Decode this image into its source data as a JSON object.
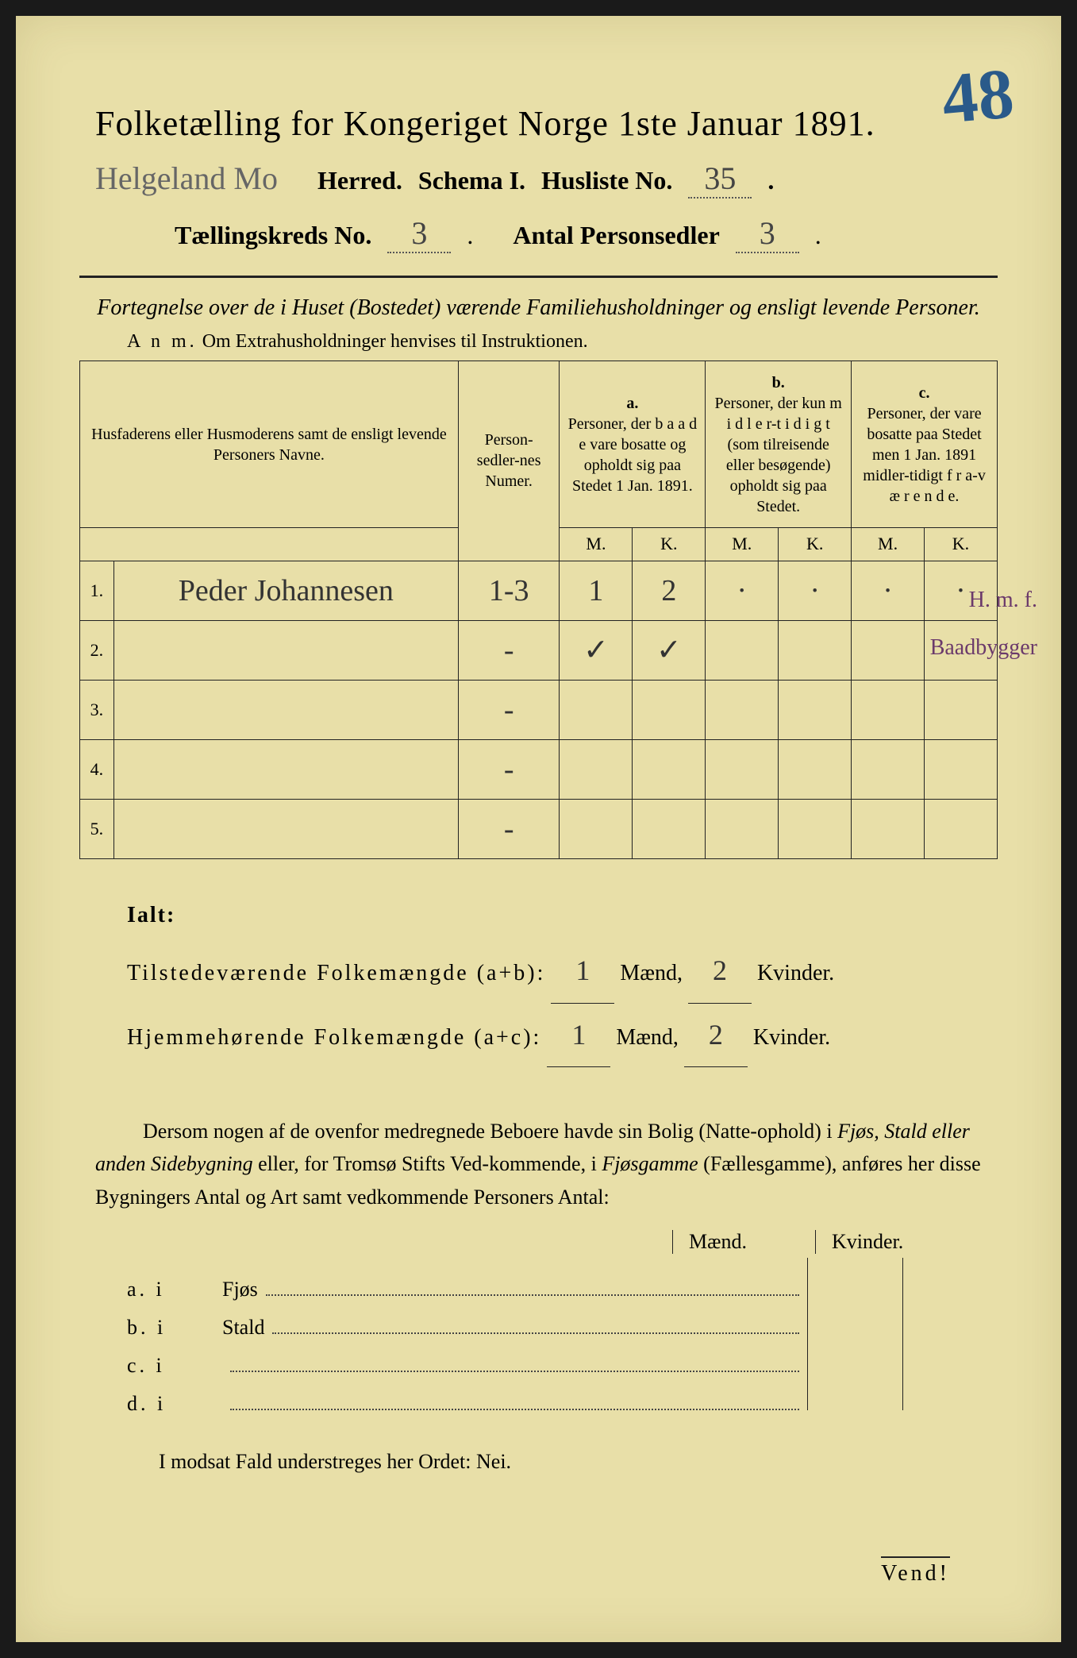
{
  "page_number_annotation": "48",
  "title": "Folketælling for Kongeriget Norge 1ste Januar 1891.",
  "herred_handwritten": "Helgeland Mo",
  "herred_label": "Herred.",
  "schema_label": "Schema I.",
  "husliste_label": "Husliste No.",
  "husliste_no": "35",
  "taellingskreds_label": "Tællingskreds No.",
  "taellingskreds_no": "3",
  "antal_label": "Antal Personsedler",
  "antal_personsedler": "3",
  "subtitle": "Fortegnelse over de i Huset (Bostedet) værende Familiehusholdninger og ensligt levende Personer.",
  "anm_label": "A n m.",
  "anm_text": "Om Extrahusholdninger henvises til Instruktionen.",
  "table": {
    "col_names": "Husfaderens eller Husmoderens samt de ensligt levende Personers Navne.",
    "col_numer": "Person-sedler-nes Numer.",
    "col_a_label": "a.",
    "col_a": "Personer, der b a a d e vare bosatte og opholdt sig paa Stedet 1 Jan. 1891.",
    "col_b_label": "b.",
    "col_b": "Personer, der kun m i d l e r-t i d i g t (som tilreisende eller besøgende) opholdt sig paa Stedet.",
    "col_c_label": "c.",
    "col_c": "Personer, der vare bosatte paa Stedet men 1 Jan. 1891 midler-tidigt f r a-v æ r e n d e.",
    "m_label": "M.",
    "k_label": "K.",
    "rows": [
      {
        "num": "1.",
        "name": "Peder Johannesen",
        "numer": "1-3",
        "a_m": "1",
        "a_k": "2",
        "b_m": "·",
        "b_k": "·",
        "c_m": "·",
        "c_k": "·"
      },
      {
        "num": "2.",
        "name": "",
        "numer": "-",
        "a_m": "✓",
        "a_k": "✓",
        "b_m": "",
        "b_k": "",
        "c_m": "",
        "c_k": ""
      },
      {
        "num": "3.",
        "name": "",
        "numer": "-",
        "a_m": "",
        "a_k": "",
        "b_m": "",
        "b_k": "",
        "c_m": "",
        "c_k": ""
      },
      {
        "num": "4.",
        "name": "",
        "numer": "-",
        "a_m": "",
        "a_k": "",
        "b_m": "",
        "b_k": "",
        "c_m": "",
        "c_k": ""
      },
      {
        "num": "5.",
        "name": "",
        "numer": "-",
        "a_m": "",
        "a_k": "",
        "b_m": "",
        "b_k": "",
        "c_m": "",
        "c_k": ""
      }
    ]
  },
  "margin_note_1": "H. m. f.",
  "margin_note_2": "Baadbygger",
  "totals": {
    "ialt": "Ialt:",
    "line1_label": "Tilstedeværende Folkemængde (a+b):",
    "line1_m": "1",
    "line1_k": "2",
    "line2_label": "Hjemmehørende Folkemængde (a+c):",
    "line2_m": "1",
    "line2_k": "2",
    "maend": "Mænd,",
    "kvinder": "Kvinder."
  },
  "body_text_1": "Dersom nogen af de ovenfor medregnede Beboere havde sin Bolig (Natte-ophold) i ",
  "body_text_italic_1": "Fjøs, Stald eller anden Sidebygning",
  "body_text_2": " eller, for Tromsø Stifts Ved-kommende, i ",
  "body_text_italic_2": "Fjøsgamme",
  "body_text_3": " (Fællesgamme), anføres her disse Bygningers Antal og Art samt vedkommende Personers Antal:",
  "buildings": {
    "maend": "Mænd.",
    "kvinder": "Kvinder.",
    "rows": [
      {
        "label": "a.  i",
        "name": "Fjøs"
      },
      {
        "label": "b.  i",
        "name": "Stald"
      },
      {
        "label": "c.  i",
        "name": ""
      },
      {
        "label": "d.  i",
        "name": ""
      }
    ]
  },
  "footer": "I modsat Fald understreges her Ordet: Nei.",
  "vend": "Vend!",
  "styling": {
    "paper_color": "#e8dfa8",
    "ink_color": "#222222",
    "handwriting_color": "#444444",
    "page_num_color": "#2a5a8a",
    "margin_note_color": "#6b3a6b",
    "title_fontsize": 44,
    "body_fontsize": 26,
    "table_fontsize": 22
  }
}
